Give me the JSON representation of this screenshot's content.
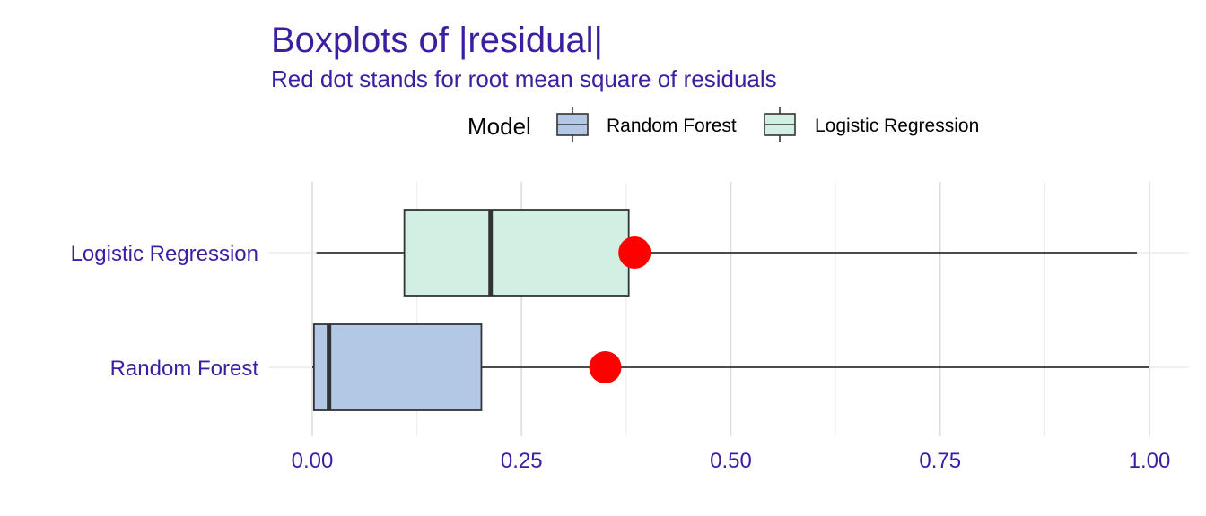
{
  "chart_data": {
    "type": "boxplot",
    "title": "Boxplots of |residual|",
    "subtitle": "Red dot stands for root mean square of residuals",
    "orientation": "horizontal",
    "xlim": [
      0,
      1
    ],
    "x_ticks": [
      0,
      0.25,
      0.5,
      0.75,
      1
    ],
    "x_tick_labels": [
      "0.00",
      "0.25",
      "0.50",
      "0.75",
      "1.00"
    ],
    "grid": true,
    "legend": {
      "title": "Model",
      "position": "top",
      "entries": [
        {
          "label": "Random Forest",
          "color": "#b3c8e5"
        },
        {
          "label": "Logistic Regression",
          "color": "#d1efe2"
        }
      ]
    },
    "series": [
      {
        "name": "Logistic Regression",
        "min": 0.005,
        "q1": 0.11,
        "median": 0.213,
        "q3": 0.378,
        "max": 0.985,
        "rmse": 0.385,
        "color": "#d1efe2"
      },
      {
        "name": "Random Forest",
        "min": 0.0,
        "q1": 0.002,
        "median": 0.02,
        "q3": 0.202,
        "max": 1.0,
        "rmse": 0.35,
        "color": "#b3c8e5"
      }
    ],
    "rmse_color": "#ff0000",
    "text_color": "#3b1fa0"
  }
}
